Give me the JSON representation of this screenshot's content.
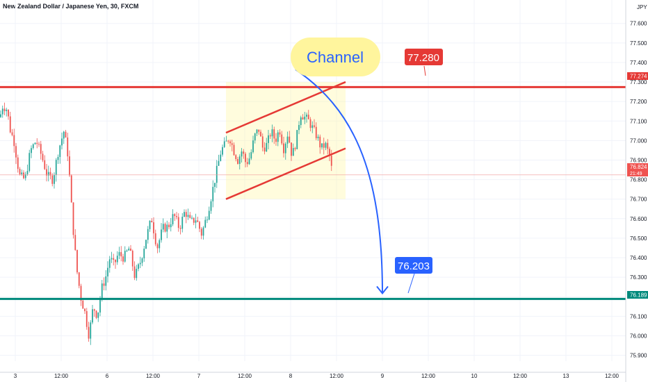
{
  "header": {
    "title": "New Zealand Dollar / Japanese Yen, 30, FXCM",
    "currency": "JPY"
  },
  "colors": {
    "up": "#26a69a",
    "down": "#ef5350",
    "resistance": "#e53935",
    "support": "#00897b",
    "arrow": "#2962ff",
    "highlight": "#fff59d"
  },
  "annotations": {
    "channel_label": "Channel",
    "resistance_callout": "77.280",
    "target_callout": "76.203"
  },
  "price_labels": {
    "resistance": "77.274",
    "support": "76.189",
    "last": "76.824",
    "countdown": "21:49"
  },
  "chart_data": {
    "type": "candlestick",
    "title": "New Zealand Dollar / Japanese Yen, 30, FXCM",
    "ylim": [
      75.87,
      77.72
    ],
    "y_ticks": [
      "77.600",
      "77.500",
      "77.400",
      "77.300",
      "77.200",
      "77.100",
      "77.000",
      "76.900",
      "76.800",
      "76.700",
      "76.600",
      "76.500",
      "76.400",
      "76.300",
      "76.200",
      "76.100",
      "76.000",
      "75.900"
    ],
    "x_ticks": [
      "3",
      "12:00",
      "6",
      "12:00",
      "7",
      "12:00",
      "8",
      "12:00",
      "9",
      "12:00",
      "10",
      "12:00",
      "13",
      "12:00"
    ],
    "resistance_level": 77.274,
    "support_level": 76.189,
    "last_price": 76.824,
    "path": [
      [
        0,
        77.12
      ],
      [
        4,
        77.18
      ],
      [
        10,
        77.16
      ],
      [
        15,
        77.05
      ],
      [
        20,
        77.0
      ],
      [
        28,
        76.82
      ],
      [
        36,
        76.8
      ],
      [
        44,
        76.95
      ],
      [
        52,
        77.0
      ],
      [
        60,
        76.92
      ],
      [
        68,
        76.82
      ],
      [
        76,
        76.8
      ],
      [
        84,
        76.95
      ],
      [
        92,
        77.05
      ],
      [
        98,
        76.92
      ],
      [
        104,
        76.6
      ],
      [
        110,
        76.35
      ],
      [
        116,
        76.2
      ],
      [
        122,
        76.12
      ],
      [
        128,
        76.0
      ],
      [
        134,
        76.15
      ],
      [
        140,
        76.1
      ],
      [
        146,
        76.24
      ],
      [
        152,
        76.3
      ],
      [
        158,
        76.4
      ],
      [
        164,
        76.36
      ],
      [
        170,
        76.42
      ],
      [
        178,
        76.4
      ],
      [
        186,
        76.45
      ],
      [
        194,
        76.3
      ],
      [
        202,
        76.38
      ],
      [
        210,
        76.5
      ],
      [
        218,
        76.6
      ],
      [
        226,
        76.45
      ],
      [
        234,
        76.55
      ],
      [
        242,
        76.56
      ],
      [
        250,
        76.62
      ],
      [
        258,
        76.55
      ],
      [
        266,
        76.64
      ],
      [
        274,
        76.58
      ],
      [
        282,
        76.6
      ],
      [
        290,
        76.52
      ],
      [
        298,
        76.62
      ],
      [
        306,
        76.75
      ],
      [
        312,
        76.85
      ],
      [
        318,
        76.95
      ],
      [
        324,
        76.98
      ],
      [
        330,
        77.02
      ],
      [
        336,
        76.95
      ],
      [
        342,
        76.9
      ],
      [
        348,
        76.95
      ],
      [
        354,
        76.88
      ],
      [
        360,
        76.92
      ],
      [
        366,
        77.02
      ],
      [
        372,
        77.06
      ],
      [
        378,
        76.96
      ],
      [
        384,
        76.98
      ],
      [
        390,
        77.05
      ],
      [
        396,
        77.0
      ],
      [
        402,
        77.06
      ],
      [
        408,
        76.96
      ],
      [
        414,
        77.04
      ],
      [
        420,
        76.92
      ],
      [
        426,
        77.0
      ],
      [
        432,
        77.14
      ],
      [
        438,
        77.12
      ],
      [
        444,
        77.1
      ],
      [
        450,
        77.06
      ],
      [
        456,
        77.02
      ],
      [
        462,
        76.96
      ],
      [
        468,
        76.98
      ],
      [
        474,
        76.92
      ],
      [
        478,
        76.83
      ]
    ],
    "path_x_max": 478,
    "channel": {
      "upper": [
        [
          325,
          77.04
        ],
        [
          497,
          77.3
        ]
      ],
      "lower": [
        [
          325,
          76.7
        ],
        [
          497,
          76.96
        ]
      ]
    },
    "target": 76.203
  }
}
